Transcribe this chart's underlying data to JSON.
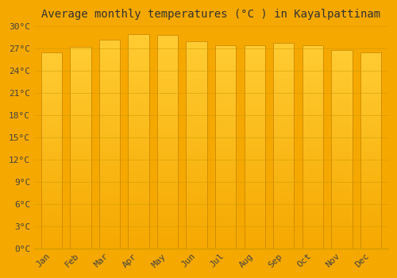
{
  "title": "Average monthly temperatures (°C ) in Kayalpattinam",
  "months": [
    "Jan",
    "Feb",
    "Mar",
    "Apr",
    "May",
    "Jun",
    "Jul",
    "Aug",
    "Sep",
    "Oct",
    "Nov",
    "Dec"
  ],
  "temperatures": [
    26.5,
    27.2,
    28.2,
    29.0,
    28.8,
    28.0,
    27.5,
    27.5,
    27.8,
    27.4,
    26.8,
    26.5
  ],
  "ylim": [
    0,
    30
  ],
  "yticks": [
    0,
    3,
    6,
    9,
    12,
    15,
    18,
    21,
    24,
    27,
    30
  ],
  "bar_color_light": "#FFCC33",
  "bar_color_dark": "#F5A800",
  "bar_edge_color": "#CC8800",
  "background_color": "#F5A800",
  "plot_bg_color": "#F5A800",
  "grid_color": "#E8A000",
  "title_fontsize": 10,
  "tick_fontsize": 8,
  "title_color": "#333333",
  "tick_color": "#444444"
}
